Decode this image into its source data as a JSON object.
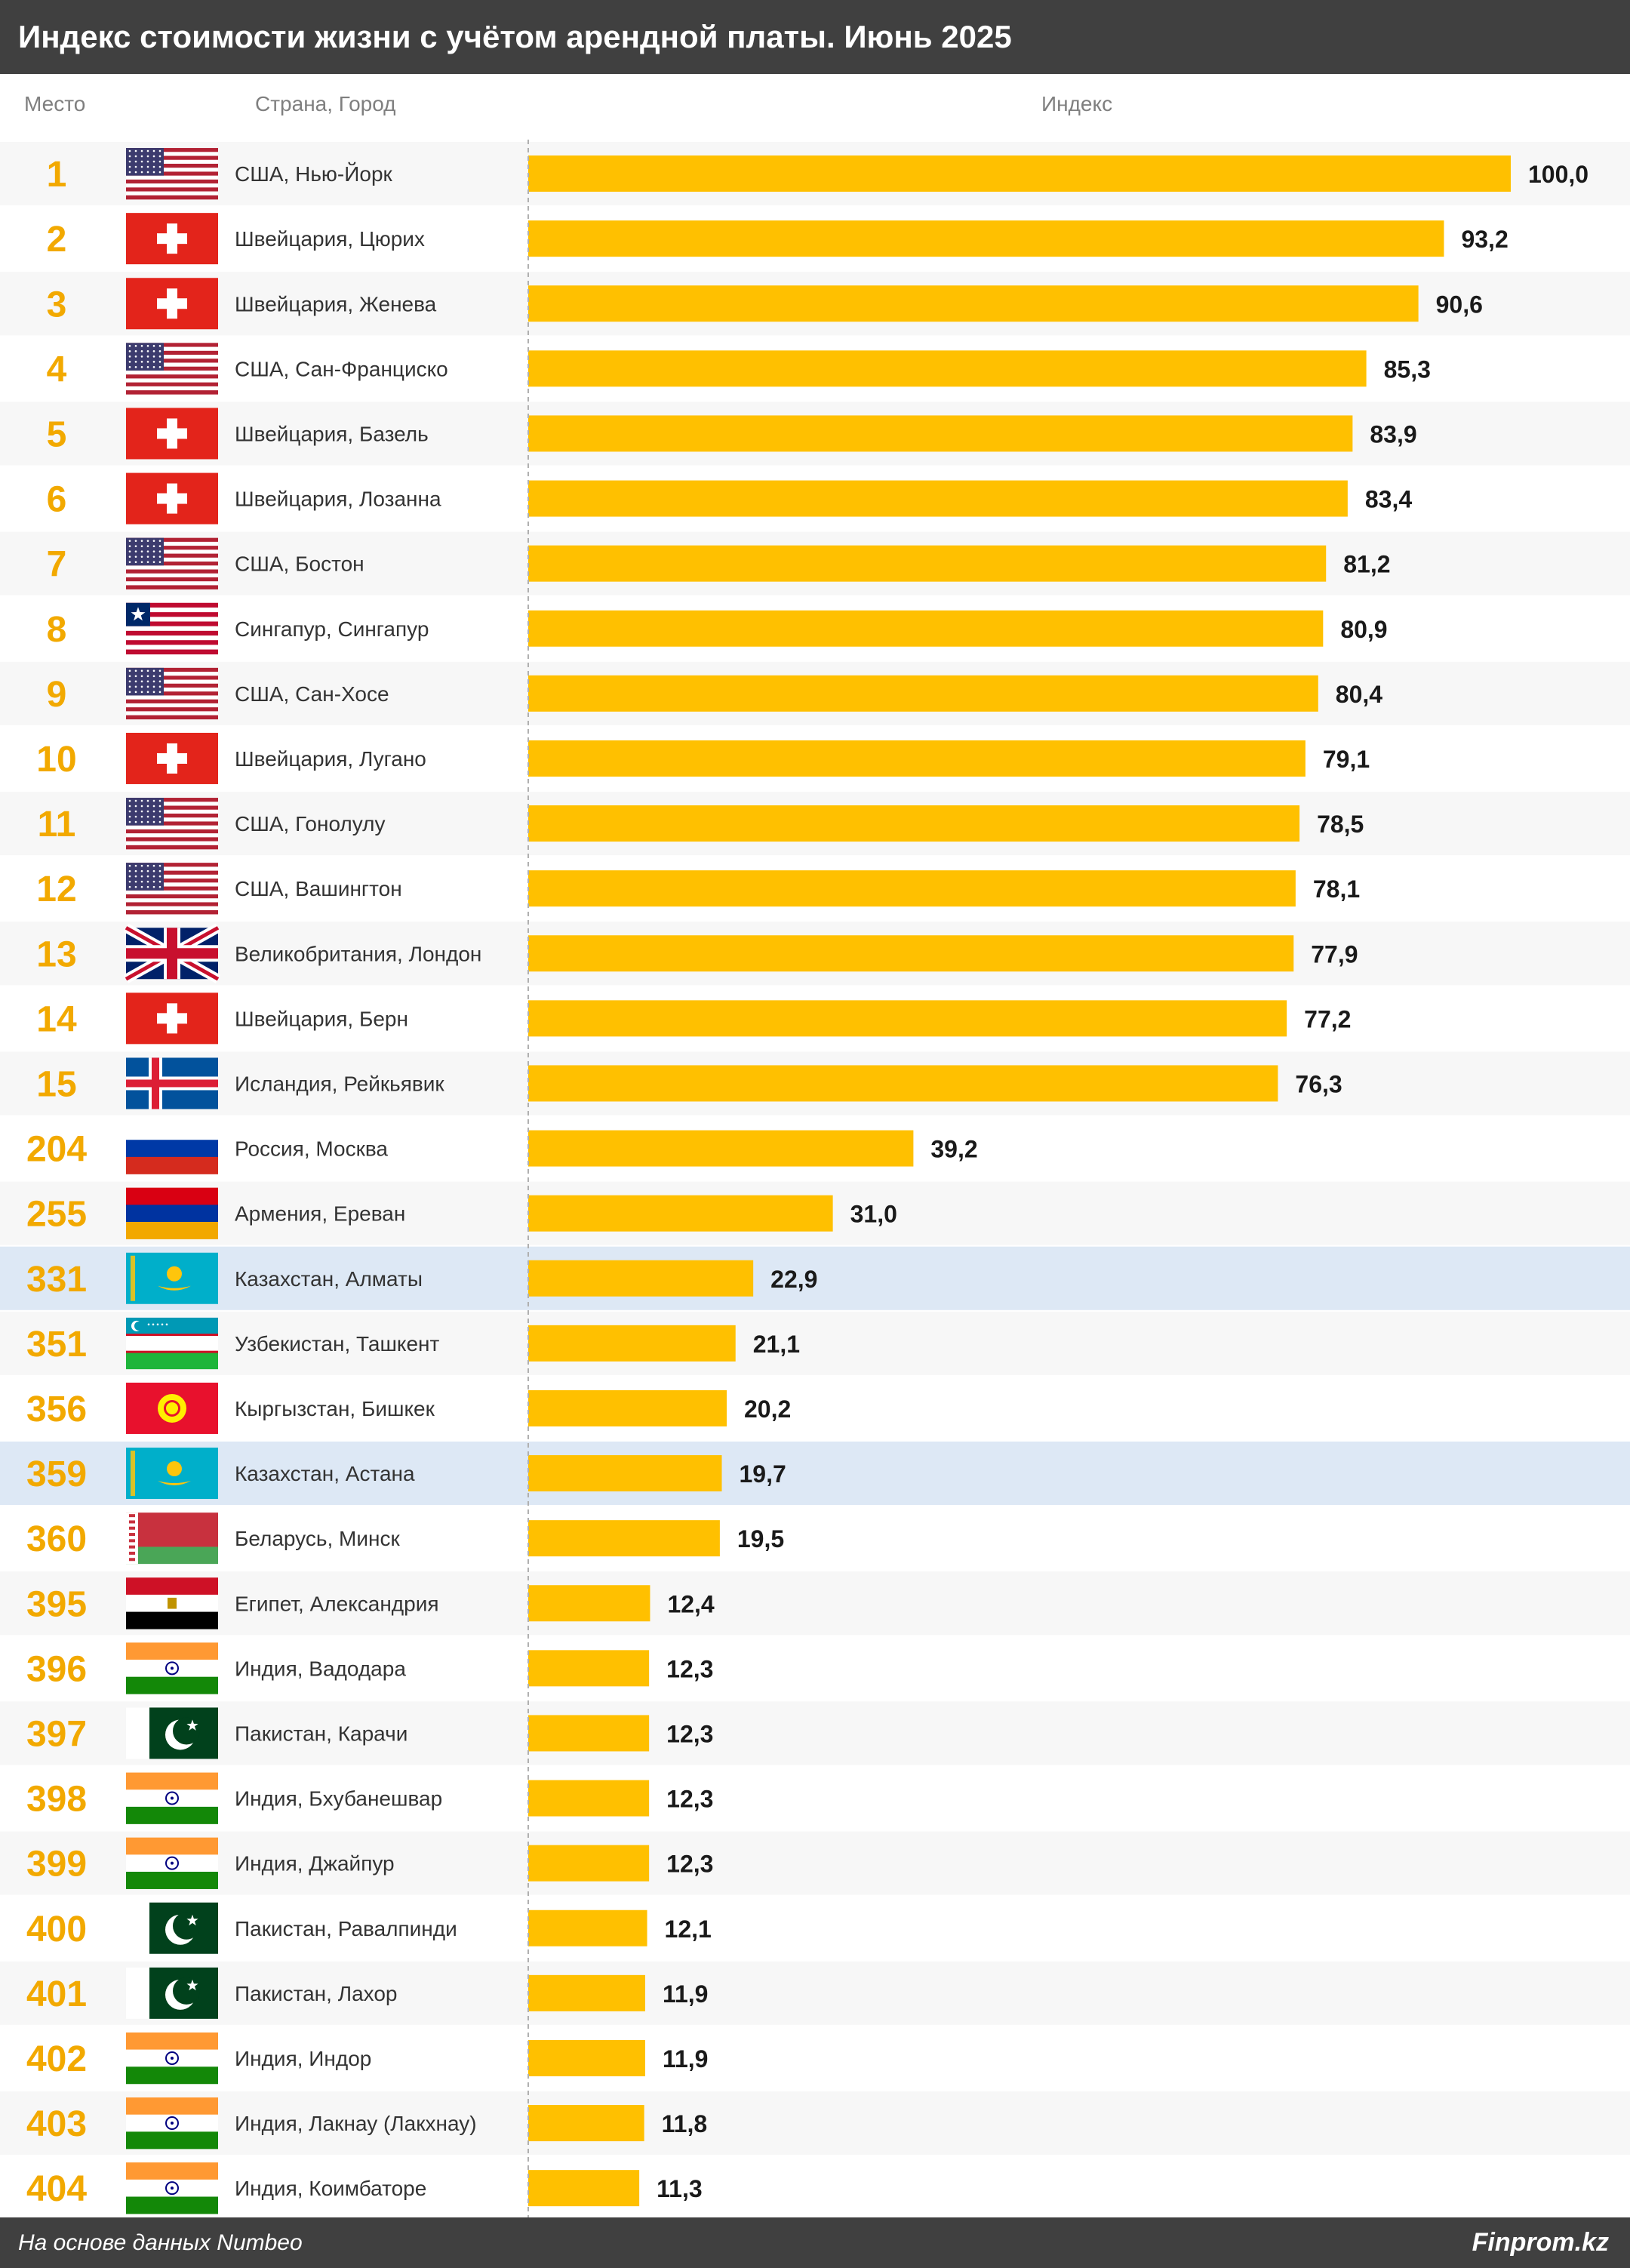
{
  "title": "Индекс стоимости жизни с учётом арендной платы. Июнь 2025",
  "columns": {
    "rank": "Место",
    "city": "Страна, Город",
    "index": "Индекс"
  },
  "footer": {
    "source": "На основе данных Numbeo",
    "brand": "Finprom.kz"
  },
  "colors": {
    "bar": "#ffc000",
    "rank": "#f2a900",
    "highlight": "#dde8f5",
    "header": "#404040"
  },
  "chart_data": {
    "type": "bar",
    "title": "Индекс стоимости жизни с учётом арендной платы. Июнь 2025",
    "xlabel": "Индекс",
    "ylabel": "Страна, Город",
    "xlim": [
      0,
      100
    ],
    "grid": false,
    "rows": [
      {
        "rank": "1",
        "city": "США, Нью-Йорк",
        "value": 100.0,
        "label": "100,0",
        "flag": "us-flag-icon",
        "highlight": false
      },
      {
        "rank": "2",
        "city": "Швейцария, Цюрих",
        "value": 93.2,
        "label": "93,2",
        "flag": "swiss-flag-icon",
        "highlight": false
      },
      {
        "rank": "3",
        "city": "Швейцария, Женева",
        "value": 90.6,
        "label": "90,6",
        "flag": "swiss-flag-icon",
        "highlight": false
      },
      {
        "rank": "4",
        "city": "США, Сан-Франциско",
        "value": 85.3,
        "label": "85,3",
        "flag": "us-flag-icon",
        "highlight": false
      },
      {
        "rank": "5",
        "city": "Швейцария, Базель",
        "value": 83.9,
        "label": "83,9",
        "flag": "swiss-flag-icon",
        "highlight": false
      },
      {
        "rank": "6",
        "city": "Швейцария, Лозанна",
        "value": 83.4,
        "label": "83,4",
        "flag": "swiss-flag-icon",
        "highlight": false
      },
      {
        "rank": "7",
        "city": "США, Бостон",
        "value": 81.2,
        "label": "81,2",
        "flag": "us-flag-icon",
        "highlight": false
      },
      {
        "rank": "8",
        "city": "Сингапур, Сингапур",
        "value": 80.9,
        "label": "80,9",
        "flag": "liberia-flag-icon",
        "highlight": false
      },
      {
        "rank": "9",
        "city": "США, Сан-Хосе",
        "value": 80.4,
        "label": "80,4",
        "flag": "us-flag-icon",
        "highlight": false
      },
      {
        "rank": "10",
        "city": "Швейцария, Лугано",
        "value": 79.1,
        "label": "79,1",
        "flag": "swiss-flag-icon",
        "highlight": false
      },
      {
        "rank": "11",
        "city": "США, Гонолулу",
        "value": 78.5,
        "label": "78,5",
        "flag": "us-flag-icon",
        "highlight": false
      },
      {
        "rank": "12",
        "city": "США, Вашингтон",
        "value": 78.1,
        "label": "78,1",
        "flag": "us-flag-icon",
        "highlight": false
      },
      {
        "rank": "13",
        "city": "Великобритания, Лондон",
        "value": 77.9,
        "label": "77,9",
        "flag": "uk-flag-icon",
        "highlight": false
      },
      {
        "rank": "14",
        "city": "Швейцария, Берн",
        "value": 77.2,
        "label": "77,2",
        "flag": "swiss-flag-icon",
        "highlight": false
      },
      {
        "rank": "15",
        "city": "Исландия, Рейкьявик",
        "value": 76.3,
        "label": "76,3",
        "flag": "iceland-flag-icon",
        "highlight": false
      },
      {
        "rank": "204",
        "city": "Россия, Москва",
        "value": 39.2,
        "label": "39,2",
        "flag": "russia-flag-icon",
        "highlight": false
      },
      {
        "rank": "255",
        "city": "Армения, Ереван",
        "value": 31.0,
        "label": "31,0",
        "flag": "armenia-flag-icon",
        "highlight": false
      },
      {
        "rank": "331",
        "city": "Казахстан, Алматы",
        "value": 22.9,
        "label": "22,9",
        "flag": "kazakhstan-flag-icon",
        "highlight": true
      },
      {
        "rank": "351",
        "city": "Узбекистан, Ташкент",
        "value": 21.1,
        "label": "21,1",
        "flag": "uzbekistan-flag-icon",
        "highlight": false
      },
      {
        "rank": "356",
        "city": "Кыргызстан, Бишкек",
        "value": 20.2,
        "label": "20,2",
        "flag": "kyrgyzstan-flag-icon",
        "highlight": false
      },
      {
        "rank": "359",
        "city": "Казахстан, Астана",
        "value": 19.7,
        "label": "19,7",
        "flag": "kazakhstan-flag-icon",
        "highlight": true
      },
      {
        "rank": "360",
        "city": "Беларусь, Минск",
        "value": 19.5,
        "label": "19,5",
        "flag": "belarus-flag-icon",
        "highlight": false
      },
      {
        "rank": "395",
        "city": "Египет, Александрия",
        "value": 12.4,
        "label": "12,4",
        "flag": "egypt-flag-icon",
        "highlight": false
      },
      {
        "rank": "396",
        "city": "Индия, Вадодара",
        "value": 12.3,
        "label": "12,3",
        "flag": "india-flag-icon",
        "highlight": false
      },
      {
        "rank": "397",
        "city": "Пакистан, Карачи",
        "value": 12.3,
        "label": "12,3",
        "flag": "pakistan-flag-icon",
        "highlight": false
      },
      {
        "rank": "398",
        "city": "Индия, Бхубанешвар",
        "value": 12.3,
        "label": "12,3",
        "flag": "india-flag-icon",
        "highlight": false
      },
      {
        "rank": "399",
        "city": "Индия, Джайпур",
        "value": 12.3,
        "label": "12,3",
        "flag": "india-flag-icon",
        "highlight": false
      },
      {
        "rank": "400",
        "city": "Пакистан, Равалпинди",
        "value": 12.1,
        "label": "12,1",
        "flag": "pakistan-flag-icon",
        "highlight": false
      },
      {
        "rank": "401",
        "city": "Пакистан, Лахор",
        "value": 11.9,
        "label": "11,9",
        "flag": "pakistan-flag-icon",
        "highlight": false
      },
      {
        "rank": "402",
        "city": "Индия, Индор",
        "value": 11.9,
        "label": "11,9",
        "flag": "india-flag-icon",
        "highlight": false
      },
      {
        "rank": "403",
        "city": "Индия, Лакнау (Лакхнау)",
        "value": 11.8,
        "label": "11,8",
        "flag": "india-flag-icon",
        "highlight": false
      },
      {
        "rank": "404",
        "city": "Индия, Коимбаторе",
        "value": 11.3,
        "label": "11,3",
        "flag": "india-flag-icon",
        "highlight": false
      }
    ]
  }
}
